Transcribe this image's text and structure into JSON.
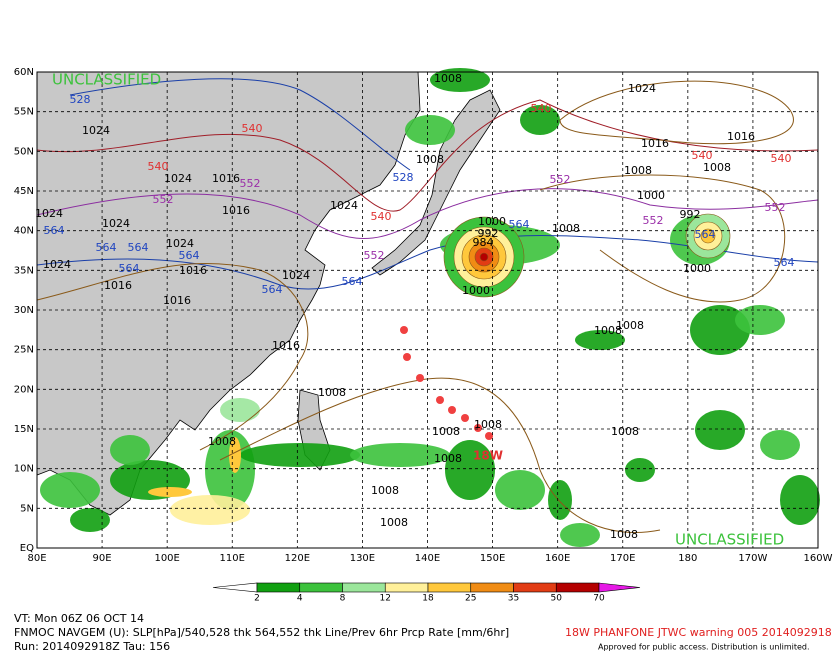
{
  "map": {
    "lat_labels": [
      "60N",
      "55N",
      "50N",
      "45N",
      "40N",
      "35N",
      "30N",
      "25N",
      "20N",
      "15N",
      "10N",
      "5N",
      "EQ"
    ],
    "lon_labels": [
      "80E",
      "90E",
      "100E",
      "110E",
      "120E",
      "130E",
      "140E",
      "150E",
      "160E",
      "170E",
      "180",
      "170W",
      "160W"
    ],
    "watermark_top": "UNCLASSIFIED",
    "watermark_bottom": "UNCLASSIFIED",
    "contour_labels": [
      "1008",
      "1024",
      "528",
      "1024",
      "540",
      "540",
      "1016",
      "1016",
      "1008",
      "1024",
      "1016",
      "552",
      "540",
      "528",
      "540",
      "540",
      "1008",
      "1008",
      "552",
      "552",
      "1016",
      "1024",
      "1024",
      "1024",
      "540",
      "1000",
      "992",
      "552",
      "552",
      "1000",
      "564",
      "1008",
      "992",
      "984",
      "564",
      "564",
      "564",
      "1024",
      "564",
      "552",
      "1024",
      "564",
      "1016",
      "1024",
      "564",
      "564",
      "1000",
      "1000",
      "564",
      "1016",
      "1016",
      "1008",
      "1008",
      "1016",
      "1008",
      "1008",
      "1008",
      "1008",
      "1008",
      "1008",
      "18W",
      "1008",
      "1008",
      "1008",
      "564"
    ]
  },
  "colorbar": {
    "ticks": [
      "2",
      "4",
      "8",
      "12",
      "18",
      "25",
      "35",
      "50",
      "70"
    ],
    "colors": [
      "#11a011",
      "#3cc23c",
      "#9be69b",
      "#fff09a",
      "#ffc83c",
      "#f08c14",
      "#e23c14",
      "#b40000",
      "#8c0000"
    ],
    "over_color": "#e619e6"
  },
  "footer": {
    "valid_time": "VT: Mon 06Z 06 OCT 14",
    "model": "FNMOC NAVGEM (U): SLP[hPa]/540,528 thk 564,552 thk Line/Prev 6hr Prcp Rate [mm/6hr]",
    "run": "Run: 2014092918Z Tau: 156",
    "warning": "18W PHANFONE JTWC warning 005 2014092918",
    "approval": "Approved for public access. Distribution is unlimited."
  }
}
